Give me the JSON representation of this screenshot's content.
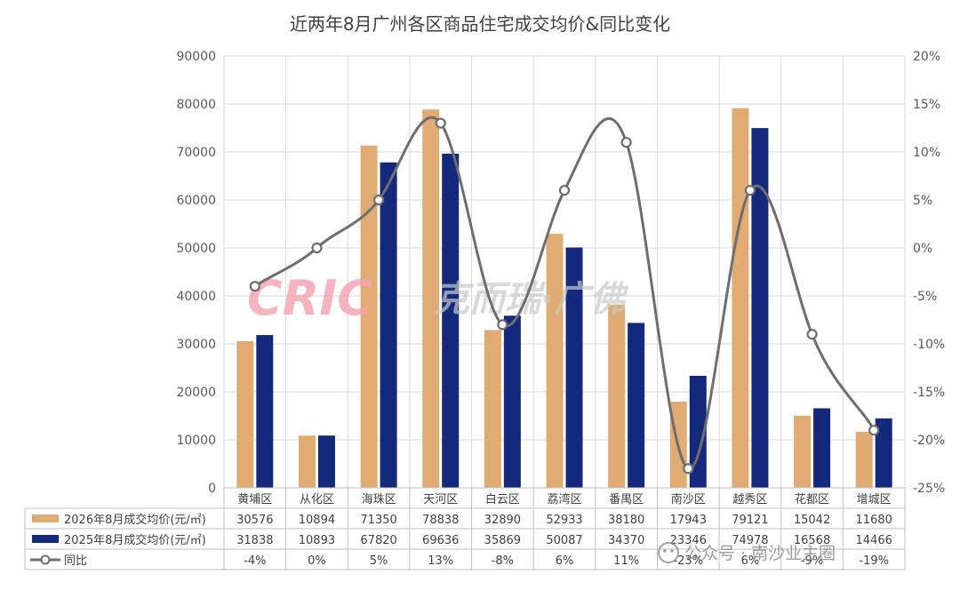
{
  "chart_data": {
    "type": "bar",
    "title": "近两年8月广州各区商品住宅成交均价&同比变化",
    "categories": [
      "黄埔区",
      "从化区",
      "海珠区",
      "天河区",
      "白云区",
      "荔湾区",
      "番禺区",
      "南沙区",
      "越秀区",
      "花都区",
      "增城区"
    ],
    "series": [
      {
        "name": "2026年8月成交均价(元/㎡)",
        "type": "bar",
        "axis": "left",
        "color": "#e0ac74",
        "values": [
          30576,
          10894,
          71350,
          78838,
          32890,
          52933,
          38180,
          17943,
          79121,
          15042,
          11680
        ]
      },
      {
        "name": "2025年8月成交均价(元/㎡)",
        "type": "bar",
        "axis": "left",
        "color": "#14297b",
        "values": [
          31838,
          10893,
          67820,
          69636,
          35869,
          50087,
          34370,
          23346,
          74978,
          16568,
          14466
        ]
      },
      {
        "name": "同比",
        "type": "line",
        "axis": "right",
        "color": "#6e6e6e",
        "values": [
          -4,
          0,
          5,
          13,
          -8,
          6,
          11,
          -23,
          6,
          -9,
          -19
        ],
        "labels": [
          "-4%",
          "0%",
          "5%",
          "13%",
          "-8%",
          "6%",
          "11%",
          "-23%",
          "6%",
          "-9%",
          "-19%"
        ]
      }
    ],
    "y_left": {
      "min": 0,
      "max": 90000,
      "step": 10000,
      "ticks": [
        "0",
        "10000",
        "20000",
        "30000",
        "40000",
        "50000",
        "60000",
        "70000",
        "80000",
        "90000"
      ]
    },
    "y_right": {
      "min": -25,
      "max": 20,
      "step": 5,
      "ticks": [
        "-25%",
        "-20%",
        "-15%",
        "-10%",
        "-5%",
        "0%",
        "5%",
        "10%",
        "15%",
        "20%"
      ]
    },
    "grid": true,
    "legend": "data-table"
  },
  "watermarks": {
    "logo": "CRIC",
    "brand": "克而瑞·广佛",
    "wechat": "公众号 · 南沙业主圈"
  }
}
